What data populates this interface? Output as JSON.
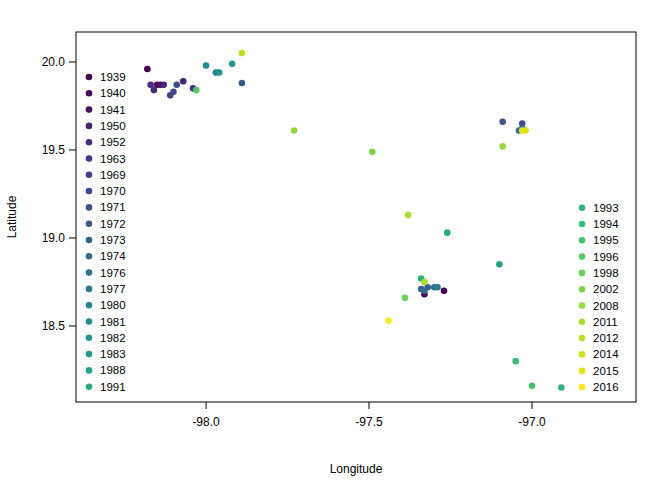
{
  "chart_data": {
    "type": "scatter",
    "x_label": "Longitude",
    "y_label": "Latitude",
    "xlim": [
      -98.399,
      -96.681
    ],
    "ylim": [
      18.068,
      20.17
    ],
    "xticks": [
      {
        "value": -98,
        "label": "-98.0"
      },
      -97.5,
      {
        "value": -97,
        "label": "-97.0"
      }
    ],
    "yticks": [
      18.5,
      {
        "value": 19,
        "label": "19.0"
      },
      19.5,
      {
        "value": 20,
        "label": "20.0"
      }
    ],
    "legend": "left",
    "series": [
      {
        "name": "1939",
        "color": "#440154",
        "x": [
          -98.18,
          -97.27
        ],
        "values": [
          19.96,
          18.7
        ]
      },
      {
        "name": "1940",
        "color": "#46085c",
        "x": [
          -98.15,
          -97.33
        ],
        "values": [
          19.87,
          18.68
        ]
      },
      {
        "name": "1941",
        "color": "#471063",
        "x": [
          -98.14
        ],
        "values": [
          19.87
        ]
      },
      {
        "name": "1950",
        "color": "#482273",
        "x": [
          -98.13,
          -98.07
        ],
        "values": [
          19.87,
          19.89
        ]
      },
      {
        "name": "1952",
        "color": "#472c7a",
        "x": [
          -98.16,
          -98.17
        ],
        "values": [
          19.84,
          19.87
        ]
      },
      {
        "name": "1963",
        "color": "#46337f",
        "x": [
          -98.04
        ],
        "values": [
          19.85
        ]
      },
      {
        "name": "1969",
        "color": "#424086",
        "x": [
          -98.11
        ],
        "values": [
          19.81
        ]
      },
      {
        "name": "1970",
        "color": "#3f4a8a",
        "x": [
          -98.1,
          -97.03
        ],
        "values": [
          19.83,
          19.65
        ]
      },
      {
        "name": "1971",
        "color": "#3c508b",
        "x": [
          -98.09,
          -97.09
        ],
        "values": [
          19.87,
          19.66
        ]
      },
      {
        "name": "1972",
        "color": "#375b8d",
        "x": [
          -97.89,
          -97.34
        ],
        "values": [
          19.88,
          18.71
        ]
      },
      {
        "name": "1973",
        "color": "#34618d",
        "x": [
          -97.32
        ],
        "values": [
          18.72
        ]
      },
      {
        "name": "1974",
        "color": "#306a8e",
        "x": [
          -97.04,
          -97.33
        ],
        "values": [
          19.61,
          18.7
        ]
      },
      {
        "name": "1976",
        "color": "#2d718e",
        "x": [
          -97.03,
          -97.3
        ],
        "values": [
          19.62,
          18.72
        ]
      },
      {
        "name": "1977",
        "color": "#297b8e",
        "x": [
          -97.29
        ],
        "values": [
          18.72
        ]
      },
      {
        "name": "1980",
        "color": "#26828e",
        "x": [
          -97.97
        ],
        "values": [
          19.94
        ]
      },
      {
        "name": "1981",
        "color": "#238a8d",
        "x": [
          -98.0
        ],
        "values": [
          19.98
        ]
      },
      {
        "name": "1982",
        "color": "#20938c",
        "x": [
          -97.96
        ],
        "values": [
          19.94
        ]
      },
      {
        "name": "1983",
        "color": "#1f9a8a",
        "x": [
          -97.92
        ],
        "values": [
          19.99
        ]
      },
      {
        "name": "1988",
        "color": "#21a386",
        "x": [
          -97.1
        ],
        "values": [
          18.85
        ]
      },
      {
        "name": "1991",
        "color": "#25ab82",
        "x": [
          -97.26
        ],
        "values": [
          19.03
        ]
      },
      {
        "name": "1993",
        "color": "#2eb37c",
        "x": [
          -97.34,
          -96.91
        ],
        "values": [
          18.77,
          18.15
        ]
      },
      {
        "name": "1994",
        "color": "#3bbb75",
        "x": [
          -97.05
        ],
        "values": [
          18.3
        ]
      },
      {
        "name": "1995",
        "color": "#48c16e",
        "x": [
          -97.0
        ],
        "values": [
          18.16
        ]
      },
      {
        "name": "1996",
        "color": "#58c765",
        "x": [
          -98.03
        ],
        "values": [
          19.84
        ]
      },
      {
        "name": "1998",
        "color": "#6ccd5a",
        "x": [
          -97.39
        ],
        "values": [
          18.66
        ]
      },
      {
        "name": "2002",
        "color": "#7fd34e",
        "x": [
          -97.49
        ],
        "values": [
          19.49
        ]
      },
      {
        "name": "2008",
        "color": "#95d840",
        "x": [
          -97.73,
          -97.09
        ],
        "values": [
          19.61,
          19.52
        ]
      },
      {
        "name": "2011",
        "color": "#aadc32",
        "x": [
          -97.38,
          -97.33
        ],
        "values": [
          19.13,
          18.75
        ]
      },
      {
        "name": "2012",
        "color": "#bfdf25",
        "x": [
          -97.89
        ],
        "values": [
          20.05
        ]
      },
      {
        "name": "2014",
        "color": "#d2e21b",
        "x": [
          -97.02
        ],
        "values": [
          19.61
        ]
      },
      {
        "name": "2015",
        "color": "#e5e419",
        "x": [
          -97.03
        ],
        "values": [
          19.61
        ]
      },
      {
        "name": "2016",
        "color": "#fde725",
        "x": [
          -97.44
        ],
        "values": [
          18.53
        ]
      }
    ]
  }
}
